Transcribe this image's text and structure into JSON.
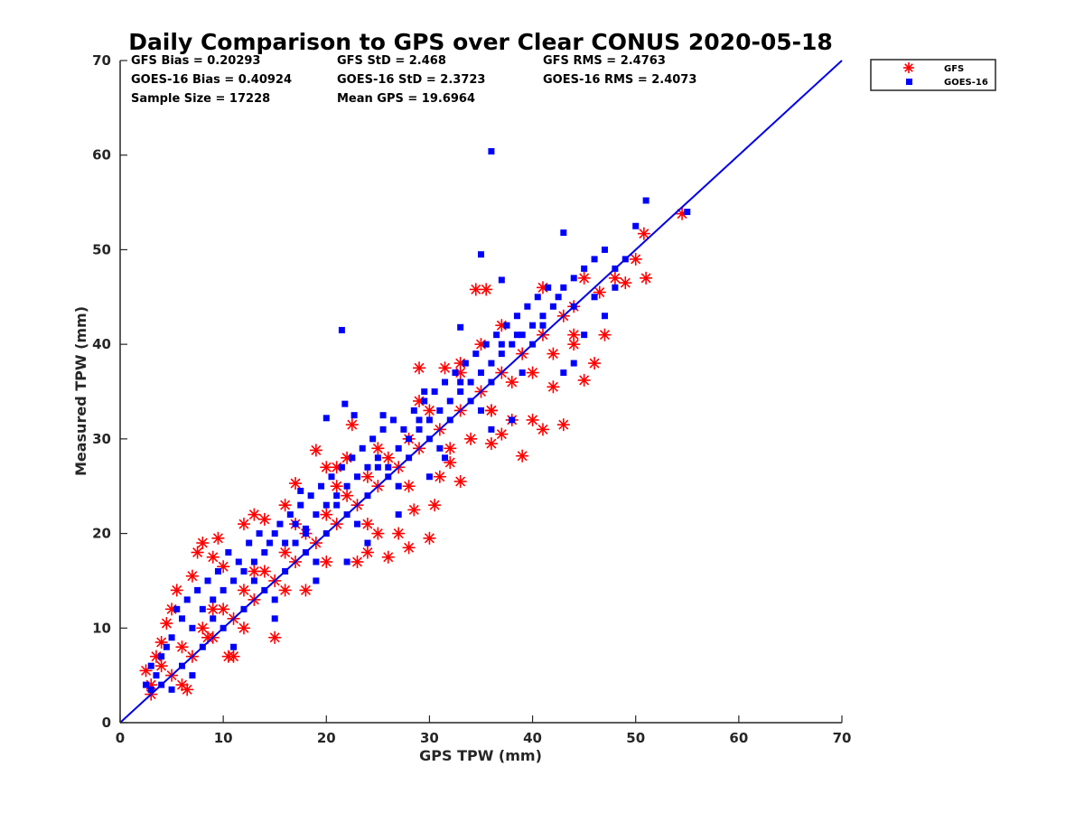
{
  "chart_data": {
    "type": "scatter",
    "title": "Daily Comparison to GPS over Clear CONUS 2020-05-18",
    "xlabel": "GPS TPW (mm)",
    "ylabel": "Measured TPW (mm)",
    "xlim": [
      0,
      70
    ],
    "ylim": [
      0,
      70
    ],
    "xticks": [
      "0",
      "10",
      "20",
      "30",
      "40",
      "50",
      "60",
      "70"
    ],
    "yticks": [
      "0",
      "10",
      "20",
      "30",
      "40",
      "50",
      "60",
      "70"
    ],
    "stats": [
      [
        "GFS Bias = 0.20293",
        "GFS StD = 2.468",
        "GFS RMS = 2.4763"
      ],
      [
        "GOES-16 Bias = 0.40924",
        "GOES-16 StD = 2.3723",
        "GOES-16 RMS = 2.4073"
      ],
      [
        "Sample Size = 17228",
        "Mean GPS = 19.6964"
      ]
    ],
    "reference_line": {
      "label": "1:1",
      "from": [
        0,
        0
      ],
      "to": [
        70,
        70
      ],
      "color": "#0000e6"
    },
    "series": [
      {
        "name": "GFS",
        "marker": "asterisk",
        "color": "#ff0000",
        "points": [
          [
            2.5,
            5.5
          ],
          [
            3,
            3
          ],
          [
            3.5,
            7
          ],
          [
            4,
            8.5
          ],
          [
            4.5,
            10.5
          ],
          [
            5,
            12
          ],
          [
            5.5,
            14
          ],
          [
            6,
            4
          ],
          [
            6.5,
            3.5
          ],
          [
            7,
            15.5
          ],
          [
            7.5,
            18
          ],
          [
            8,
            19
          ],
          [
            8.5,
            9
          ],
          [
            9,
            17.5
          ],
          [
            9.5,
            19.5
          ],
          [
            10,
            16.5
          ],
          [
            10.5,
            7
          ],
          [
            11,
            7
          ],
          [
            12,
            21
          ],
          [
            13,
            22
          ],
          [
            14,
            21.5
          ],
          [
            15,
            9
          ],
          [
            16,
            23
          ],
          [
            17,
            25.3
          ],
          [
            18,
            14
          ],
          [
            19,
            28.8
          ],
          [
            20,
            27
          ],
          [
            21,
            27
          ],
          [
            22,
            28
          ],
          [
            22.5,
            31.5
          ],
          [
            23,
            17
          ],
          [
            24,
            18
          ],
          [
            25,
            20
          ],
          [
            26,
            17.5
          ],
          [
            27,
            20
          ],
          [
            28,
            18.5
          ],
          [
            28.5,
            22.5
          ],
          [
            29,
            37.5
          ],
          [
            30,
            19.5
          ],
          [
            30.5,
            23
          ],
          [
            31,
            26
          ],
          [
            31.5,
            37.5
          ],
          [
            32,
            27.5
          ],
          [
            33,
            25.5
          ],
          [
            34,
            30
          ],
          [
            34.5,
            45.8
          ],
          [
            35.5,
            45.8
          ],
          [
            36,
            29.5
          ],
          [
            37,
            30.5
          ],
          [
            38,
            32
          ],
          [
            39,
            28.2
          ],
          [
            40,
            32
          ],
          [
            41,
            31
          ],
          [
            42,
            35.5
          ],
          [
            43,
            31.5
          ],
          [
            44,
            41
          ],
          [
            45,
            36.2
          ],
          [
            46,
            38
          ],
          [
            47,
            41
          ],
          [
            48,
            47
          ],
          [
            49,
            46.5
          ],
          [
            50,
            49
          ],
          [
            51,
            47
          ],
          [
            50.8,
            51.7
          ],
          [
            54.5,
            53.8
          ],
          [
            46.5,
            45.5
          ],
          [
            44,
            44
          ],
          [
            43,
            43
          ],
          [
            42,
            39
          ],
          [
            38,
            36
          ],
          [
            35,
            40
          ],
          [
            36,
            33
          ],
          [
            33,
            37
          ],
          [
            30,
            33
          ],
          [
            28,
            30
          ],
          [
            26,
            28
          ],
          [
            24,
            26
          ],
          [
            22,
            24
          ],
          [
            20,
            22
          ],
          [
            18,
            20
          ],
          [
            16,
            18
          ],
          [
            14,
            16
          ],
          [
            12,
            14
          ],
          [
            10,
            12
          ],
          [
            8,
            10
          ],
          [
            6,
            8
          ],
          [
            4,
            6
          ],
          [
            3,
            4
          ],
          [
            5,
            5
          ],
          [
            7,
            7
          ],
          [
            9,
            9
          ],
          [
            11,
            11
          ],
          [
            13,
            13
          ],
          [
            15,
            15
          ],
          [
            17,
            17
          ],
          [
            19,
            19
          ],
          [
            21,
            21
          ],
          [
            23,
            23
          ],
          [
            25,
            25
          ],
          [
            27,
            27
          ],
          [
            29,
            29
          ],
          [
            31,
            31
          ],
          [
            33,
            33
          ],
          [
            35,
            35
          ],
          [
            37,
            37
          ],
          [
            39,
            39
          ],
          [
            41,
            41
          ],
          [
            12,
            10
          ],
          [
            16,
            14
          ],
          [
            20,
            17
          ],
          [
            24,
            21
          ],
          [
            28,
            25
          ],
          [
            32,
            29
          ],
          [
            36,
            33
          ],
          [
            40,
            37
          ],
          [
            44,
            40
          ],
          [
            9,
            12
          ],
          [
            13,
            16
          ],
          [
            17,
            21
          ],
          [
            21,
            25
          ],
          [
            25,
            29
          ],
          [
            29,
            34
          ],
          [
            33,
            38
          ],
          [
            37,
            42
          ],
          [
            41,
            46
          ],
          [
            45,
            47
          ]
        ]
      },
      {
        "name": "GOES-16",
        "marker": "square",
        "color": "#0000ff",
        "points": [
          [
            2.5,
            4
          ],
          [
            3,
            6
          ],
          [
            3.5,
            5
          ],
          [
            4,
            7
          ],
          [
            4.5,
            8
          ],
          [
            5,
            9
          ],
          [
            5.5,
            12
          ],
          [
            6,
            11
          ],
          [
            6.5,
            13
          ],
          [
            7,
            10
          ],
          [
            7.5,
            14
          ],
          [
            8,
            12
          ],
          [
            8.5,
            15
          ],
          [
            9,
            13
          ],
          [
            9.5,
            16
          ],
          [
            10,
            14
          ],
          [
            10.5,
            18
          ],
          [
            11,
            15
          ],
          [
            11.5,
            17
          ],
          [
            12,
            16
          ],
          [
            12.5,
            19
          ],
          [
            13,
            17
          ],
          [
            13.5,
            20
          ],
          [
            14,
            18
          ],
          [
            14.5,
            19
          ],
          [
            15,
            20
          ],
          [
            15.5,
            21
          ],
          [
            16,
            19
          ],
          [
            16.5,
            22
          ],
          [
            17,
            21
          ],
          [
            17.5,
            23
          ],
          [
            18,
            20
          ],
          [
            18.5,
            24
          ],
          [
            19,
            22
          ],
          [
            19.5,
            25
          ],
          [
            20,
            23
          ],
          [
            20.5,
            26
          ],
          [
            21,
            24
          ],
          [
            21.5,
            27
          ],
          [
            22,
            25
          ],
          [
            22.5,
            28
          ],
          [
            23,
            26
          ],
          [
            23.5,
            29
          ],
          [
            24,
            27
          ],
          [
            24.5,
            30
          ],
          [
            25,
            28
          ],
          [
            25.5,
            31
          ],
          [
            26,
            27
          ],
          [
            26.5,
            32
          ],
          [
            27,
            29
          ],
          [
            27.5,
            31
          ],
          [
            28,
            30
          ],
          [
            28.5,
            33
          ],
          [
            29,
            31
          ],
          [
            29.5,
            34
          ],
          [
            30,
            32
          ],
          [
            30.5,
            35
          ],
          [
            31,
            33
          ],
          [
            31.5,
            36
          ],
          [
            32,
            34
          ],
          [
            32.5,
            37
          ],
          [
            33,
            35
          ],
          [
            33.5,
            38
          ],
          [
            34,
            36
          ],
          [
            34.5,
            39
          ],
          [
            35,
            37
          ],
          [
            35.5,
            40
          ],
          [
            36,
            38
          ],
          [
            36.5,
            41
          ],
          [
            37,
            39
          ],
          [
            37.5,
            42
          ],
          [
            38,
            40
          ],
          [
            38.5,
            43
          ],
          [
            39,
            41
          ],
          [
            39.5,
            44
          ],
          [
            40,
            42
          ],
          [
            40.5,
            45
          ],
          [
            41,
            43
          ],
          [
            41.5,
            46
          ],
          [
            42,
            44
          ],
          [
            42.5,
            45
          ],
          [
            43,
            46
          ],
          [
            44,
            47
          ],
          [
            45,
            48
          ],
          [
            46,
            49
          ],
          [
            47,
            50
          ],
          [
            48,
            48
          ],
          [
            50,
            52.5
          ],
          [
            51,
            55.2
          ],
          [
            55,
            54
          ],
          [
            36,
            60.4
          ],
          [
            35,
            49.5
          ],
          [
            43,
            51.8
          ],
          [
            21.5,
            41.5
          ],
          [
            21.8,
            33.7
          ],
          [
            20,
            32.2
          ],
          [
            17.5,
            24.5
          ],
          [
            18,
            20.5
          ],
          [
            22.7,
            32.5
          ],
          [
            25.5,
            32.5
          ],
          [
            29.5,
            35
          ],
          [
            31.5,
            28
          ],
          [
            33,
            41.8
          ],
          [
            37,
            46.8
          ],
          [
            38.5,
            41
          ],
          [
            34,
            34
          ],
          [
            30,
            30
          ],
          [
            26,
            26
          ],
          [
            22,
            22
          ],
          [
            18,
            18
          ],
          [
            14,
            14
          ],
          [
            10,
            10
          ],
          [
            6,
            6
          ],
          [
            4,
            4
          ],
          [
            8,
            8
          ],
          [
            12,
            12
          ],
          [
            16,
            16
          ],
          [
            20,
            20
          ],
          [
            24,
            24
          ],
          [
            28,
            28
          ],
          [
            32,
            32
          ],
          [
            36,
            36
          ],
          [
            40,
            40
          ],
          [
            44,
            44
          ],
          [
            15,
            13
          ],
          [
            19,
            17
          ],
          [
            23,
            21
          ],
          [
            27,
            25
          ],
          [
            31,
            29
          ],
          [
            35,
            33
          ],
          [
            39,
            37
          ],
          [
            9,
            11
          ],
          [
            13,
            15
          ],
          [
            17,
            19
          ],
          [
            21,
            23
          ],
          [
            25,
            27
          ],
          [
            29,
            32
          ],
          [
            33,
            36
          ],
          [
            37,
            40
          ],
          [
            41,
            42
          ],
          [
            46,
            45
          ],
          [
            48,
            46
          ],
          [
            49,
            49
          ],
          [
            47,
            43
          ],
          [
            45,
            41
          ],
          [
            44,
            38
          ],
          [
            43,
            37
          ],
          [
            38,
            32
          ],
          [
            36,
            31
          ],
          [
            30,
            26
          ],
          [
            27,
            22
          ],
          [
            24,
            19
          ],
          [
            22,
            17
          ],
          [
            19,
            15
          ],
          [
            15,
            11
          ],
          [
            11,
            8
          ],
          [
            7,
            5
          ],
          [
            5,
            3.5
          ],
          [
            3,
            3.5
          ]
        ]
      }
    ],
    "legend": {
      "placement": "outside-top-right",
      "entries": [
        "GFS",
        "GOES-16"
      ]
    }
  }
}
